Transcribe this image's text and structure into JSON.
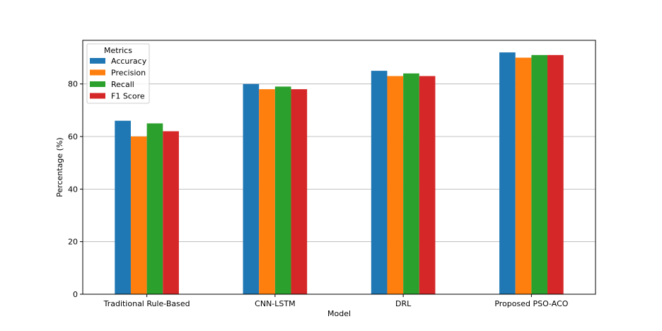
{
  "chart_data": {
    "type": "bar",
    "title": "",
    "xlabel": "Model",
    "ylabel": "Percentage (%)",
    "categories": [
      "Traditional Rule-Based",
      "CNN-LSTM",
      "DRL",
      "Proposed PSO-ACO"
    ],
    "series": [
      {
        "name": "Accuracy",
        "color": "#1f77b4",
        "values": [
          66,
          80,
          85,
          92
        ]
      },
      {
        "name": "Precision",
        "color": "#ff7f0e",
        "values": [
          60,
          78,
          83,
          90
        ]
      },
      {
        "name": "Recall",
        "color": "#2ca02c",
        "values": [
          65,
          79,
          84,
          91
        ]
      },
      {
        "name": "F1 Score",
        "color": "#d62728",
        "values": [
          62,
          78,
          83,
          91
        ]
      }
    ],
    "ylim": [
      0,
      96.6
    ],
    "yticks": [
      0,
      20,
      40,
      60,
      80
    ],
    "grid": "y",
    "legend": {
      "title": "Metrics",
      "placement": "upper-left"
    }
  }
}
